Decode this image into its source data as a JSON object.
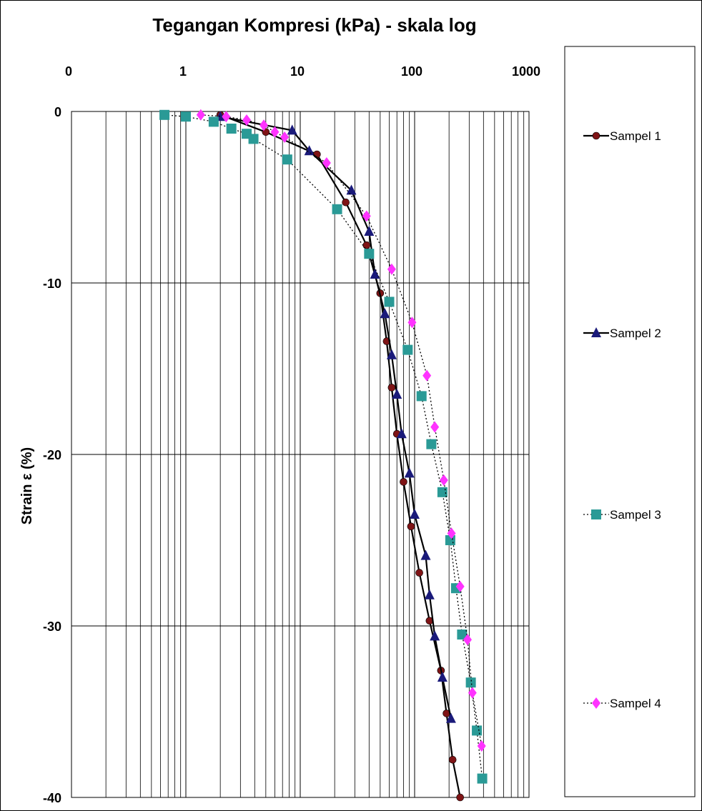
{
  "chart_data": {
    "type": "line",
    "title": "Tegangan Kompresi (kPa) - skala log",
    "xlabel": "Tegangan Kompresi (kPa) - skala log",
    "ylabel": "Strain ε (%)",
    "x_scale": "log",
    "x_axis_position": "top",
    "xlim": [
      0.1,
      1000
    ],
    "ylim": [
      -40,
      0
    ],
    "x_tick_labels": [
      "0",
      "1",
      "10",
      "100",
      "1000"
    ],
    "y_tick_labels": [
      "0",
      "-10",
      "-20",
      "-30",
      "-40"
    ],
    "y_ticks": [
      0,
      -10,
      -20,
      -30,
      -40
    ],
    "grid": true,
    "legend": "right",
    "series": [
      {
        "name": "Sampel 1",
        "color": "#7f1416",
        "marker": "circle",
        "line_style": "solid",
        "x": [
          2,
          5,
          14,
          25,
          38,
          50,
          57,
          63,
          70,
          80,
          93,
          110,
          135,
          170,
          190,
          215,
          250
        ],
        "y": [
          -0.2,
          -1.2,
          -2.5,
          -5.3,
          -7.8,
          -10.6,
          -13.4,
          -16.1,
          -18.8,
          -21.6,
          -24.2,
          -26.9,
          -29.7,
          -32.6,
          -35.1,
          -37.8,
          -40.0
        ]
      },
      {
        "name": "Sampel 2",
        "color": "#1a1a7a",
        "marker": "triangle",
        "line_style": "solid",
        "x": [
          2,
          8.5,
          12,
          28,
          40,
          45,
          55,
          63,
          70,
          77,
          90,
          100,
          125,
          135,
          150,
          175,
          208
        ],
        "y": [
          -0.3,
          -1.1,
          -2.3,
          -4.6,
          -7.0,
          -9.5,
          -11.8,
          -14.2,
          -16.5,
          -18.8,
          -21.1,
          -23.5,
          -25.9,
          -28.2,
          -30.6,
          -33.0,
          -35.4
        ]
      },
      {
        "name": "Sampel 3",
        "color": "#2a9a96",
        "marker": "square",
        "line_style": "dotted",
        "x": [
          0.65,
          1.0,
          1.75,
          2.5,
          3.4,
          3.9,
          7.7,
          21,
          40,
          60,
          87,
          115,
          140,
          175,
          205,
          230,
          260,
          310,
          350,
          390
        ],
        "y": [
          -0.2,
          -0.3,
          -0.6,
          -1.0,
          -1.3,
          -1.6,
          -2.8,
          -5.7,
          -8.3,
          -11.1,
          -13.9,
          -16.6,
          -19.4,
          -22.2,
          -25.0,
          -27.8,
          -30.5,
          -33.3,
          -36.1,
          -38.9
        ]
      },
      {
        "name": "Sampel 4",
        "color": "#ff33ff",
        "marker": "diamond",
        "line_style": "dotted",
        "x": [
          1.35,
          2.25,
          3.4,
          4.8,
          6.0,
          7.3,
          17,
          38,
          63,
          95,
          128,
          150,
          180,
          210,
          250,
          290,
          320,
          385
        ],
        "y": [
          -0.2,
          -0.3,
          -0.5,
          -0.8,
          -1.2,
          -1.5,
          -3.0,
          -6.1,
          -9.2,
          -12.3,
          -15.4,
          -18.4,
          -21.5,
          -24.6,
          -27.7,
          -30.8,
          -33.9,
          -37.0
        ]
      }
    ]
  }
}
